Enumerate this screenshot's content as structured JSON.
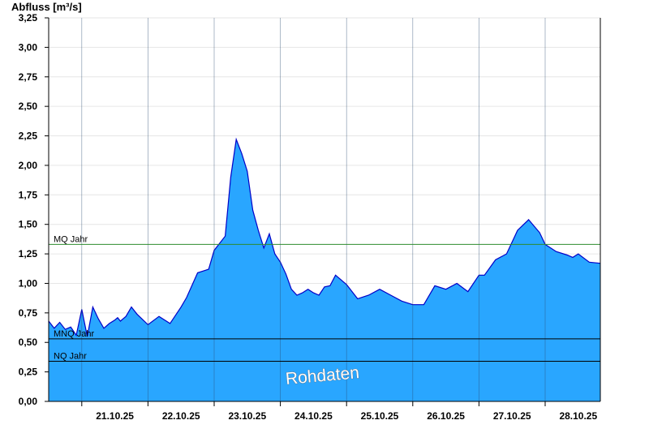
{
  "chart_data": {
    "type": "area",
    "title": "",
    "ylabel": "Abfluss [m³/s]",
    "xlabel": "",
    "ylim": [
      0,
      3.25
    ],
    "y_ticks": [
      0,
      0.25,
      0.5,
      0.75,
      1.0,
      1.25,
      1.5,
      1.75,
      2.0,
      2.25,
      2.5,
      2.75,
      3.0,
      3.25
    ],
    "y_tick_labels": [
      "0,00",
      "0,25",
      "0,50",
      "0,75",
      "1,00",
      "1,25",
      "1,50",
      "1,75",
      "2,00",
      "2,25",
      "2,50",
      "2,75",
      "3,00",
      "3,25"
    ],
    "x_tick_labels": [
      "21.10.25",
      "22.10.25",
      "23.10.25",
      "24.10.25",
      "25.10.25",
      "26.10.25",
      "27.10.25",
      "28.10.25"
    ],
    "xlim": [
      "2025-10-20T12:00",
      "2025-10-28T20:00"
    ],
    "grid": true,
    "fill_color": "#29a6ff",
    "line_color": "#0000c8",
    "reference_lines": [
      {
        "label": "MQ Jahr",
        "value": 1.33,
        "color": "#2e8b2e"
      },
      {
        "label": "MNQ Jahr",
        "value": 0.53,
        "color": "#000000"
      },
      {
        "label": "NQ Jahr",
        "value": 0.34,
        "color": "#000000"
      }
    ],
    "watermark": "Rohdaten",
    "series": [
      {
        "x": [
          "2025-10-20T12:00",
          "2025-10-20T14:00",
          "2025-10-20T16:00",
          "2025-10-20T18:00",
          "2025-10-20T20:00",
          "2025-10-20T22:00",
          "2025-10-21T00:00",
          "2025-10-21T02:00",
          "2025-10-21T04:00",
          "2025-10-21T06:00",
          "2025-10-21T08:00",
          "2025-10-21T10:00",
          "2025-10-21T12:00",
          "2025-10-21T13:00",
          "2025-10-21T14:00",
          "2025-10-21T16:00",
          "2025-10-21T18:00",
          "2025-10-21T20:00",
          "2025-10-22T00:00",
          "2025-10-22T04:00",
          "2025-10-22T08:00",
          "2025-10-22T12:00",
          "2025-10-22T14:00",
          "2025-10-22T18:00",
          "2025-10-22T22:00",
          "2025-10-23T00:00",
          "2025-10-23T04:00",
          "2025-10-23T06:00",
          "2025-10-23T08:00",
          "2025-10-23T10:00",
          "2025-10-23T12:00",
          "2025-10-23T14:00",
          "2025-10-23T16:00",
          "2025-10-23T18:00",
          "2025-10-23T20:00",
          "2025-10-23T22:00",
          "2025-10-24T00:00",
          "2025-10-24T02:00",
          "2025-10-24T04:00",
          "2025-10-24T06:00",
          "2025-10-24T08:00",
          "2025-10-24T10:00",
          "2025-10-24T12:00",
          "2025-10-24T14:00",
          "2025-10-24T16:00",
          "2025-10-24T18:00",
          "2025-10-24T20:00",
          "2025-10-25T00:00",
          "2025-10-25T04:00",
          "2025-10-25T08:00",
          "2025-10-25T12:00",
          "2025-10-25T16:00",
          "2025-10-25T20:00",
          "2025-10-26T00:00",
          "2025-10-26T04:00",
          "2025-10-26T08:00",
          "2025-10-26T12:00",
          "2025-10-26T16:00",
          "2025-10-26T20:00",
          "2025-10-27T00:00",
          "2025-10-27T02:00",
          "2025-10-27T06:00",
          "2025-10-27T10:00",
          "2025-10-27T14:00",
          "2025-10-27T18:00",
          "2025-10-27T22:00",
          "2025-10-28T00:00",
          "2025-10-28T04:00",
          "2025-10-28T08:00",
          "2025-10-28T10:00",
          "2025-10-28T12:00",
          "2025-10-28T16:00",
          "2025-10-28T20:00"
        ],
        "values": [
          0.68,
          0.62,
          0.67,
          0.61,
          0.63,
          0.56,
          0.78,
          0.55,
          0.8,
          0.7,
          0.62,
          0.66,
          0.69,
          0.71,
          0.68,
          0.72,
          0.8,
          0.74,
          0.65,
          0.72,
          0.66,
          0.8,
          0.88,
          1.09,
          1.12,
          1.28,
          1.4,
          1.9,
          2.22,
          2.1,
          1.95,
          1.62,
          1.45,
          1.3,
          1.42,
          1.25,
          1.18,
          1.08,
          0.95,
          0.9,
          0.92,
          0.95,
          0.92,
          0.9,
          0.97,
          0.98,
          1.07,
          0.99,
          0.87,
          0.9,
          0.95,
          0.9,
          0.85,
          0.82,
          0.82,
          0.98,
          0.95,
          1.0,
          0.93,
          1.07,
          1.07,
          1.2,
          1.25,
          1.45,
          1.54,
          1.43,
          1.33,
          1.27,
          1.24,
          1.22,
          1.25,
          1.18,
          1.17
        ]
      }
    ]
  }
}
